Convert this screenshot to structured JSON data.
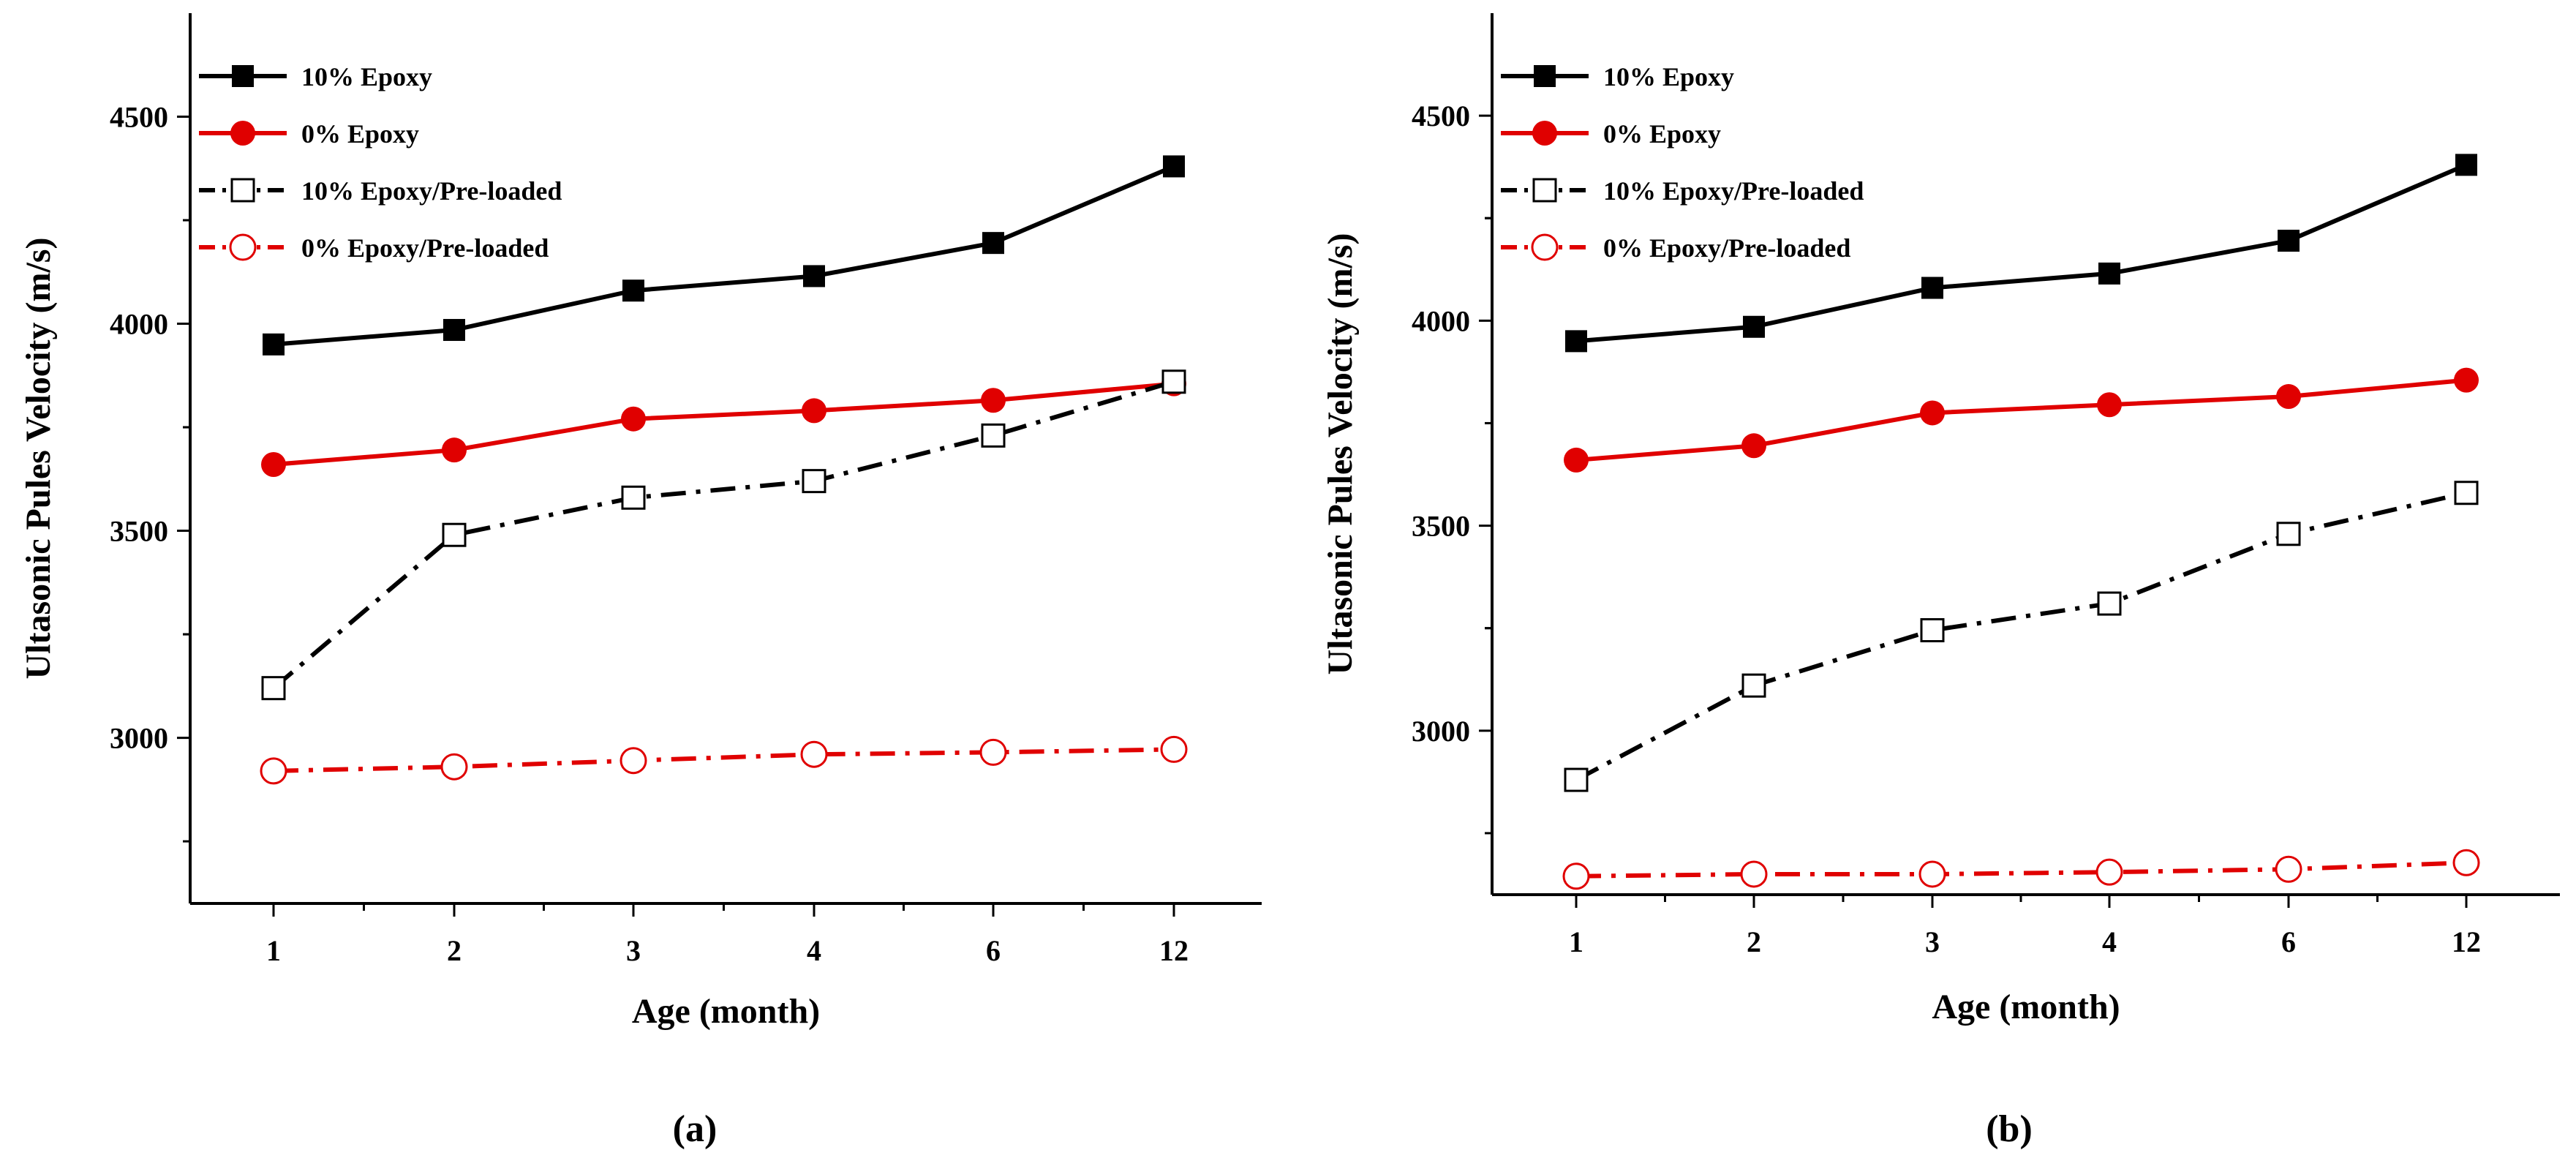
{
  "colors": {
    "black": "#000000",
    "red": "#e00000",
    "marker_fill_open": "#ffffff"
  },
  "chart_data": [
    {
      "type": "line",
      "panel_label": "(a)",
      "xlabel": "Age (month)",
      "ylabel": "Ultasonic Pules Velocity (m/s)",
      "categories": [
        "1",
        "2",
        "3",
        "4",
        "6",
        "12"
      ],
      "ylim": [
        2600,
        4750
      ],
      "yticks": [
        3000,
        3500,
        4000,
        4500
      ],
      "grid": false,
      "legend_position": "top-left",
      "series": [
        {
          "name": "10% Epoxy",
          "values": [
            3950,
            3985,
            4080,
            4115,
            4195,
            4380
          ],
          "color": "#000000",
          "marker": "filled-square",
          "line": "solid"
        },
        {
          "name": "0% Epoxy",
          "values": [
            3660,
            3695,
            3770,
            3790,
            3815,
            3855
          ],
          "color": "#e00000",
          "marker": "filled-circle",
          "line": "solid"
        },
        {
          "name": "10% Epoxy/Pre-loaded",
          "values": [
            3120,
            3490,
            3580,
            3620,
            3730,
            3860
          ],
          "color": "#000000",
          "marker": "open-square",
          "line": "dash-dot"
        },
        {
          "name": "0% Epoxy/Pre-loaded",
          "values": [
            2920,
            2930,
            2945,
            2960,
            2965,
            2972
          ],
          "color": "#e00000",
          "marker": "open-circle",
          "line": "dash-dot"
        }
      ]
    },
    {
      "type": "line",
      "panel_label": "(b)",
      "xlabel": "Age (month)",
      "ylabel": "Ultasonic Pules Velocity (m/s)",
      "categories": [
        "1",
        "2",
        "3",
        "4",
        "6",
        "12"
      ],
      "ylim": [
        2600,
        4750
      ],
      "yticks": [
        3000,
        3500,
        4000,
        4500
      ],
      "grid": false,
      "legend_position": "top-left",
      "series": [
        {
          "name": "10% Epoxy",
          "values": [
            3950,
            3985,
            4080,
            4115,
            4195,
            4380
          ],
          "color": "#000000",
          "marker": "filled-square",
          "line": "solid"
        },
        {
          "name": "0% Epoxy",
          "values": [
            3660,
            3695,
            3775,
            3795,
            3815,
            3855
          ],
          "color": "#e00000",
          "marker": "filled-circle",
          "line": "solid"
        },
        {
          "name": "10% Epoxy/Pre-loaded",
          "values": [
            2880,
            3110,
            3245,
            3310,
            3480,
            3580
          ],
          "color": "#000000",
          "marker": "open-square",
          "line": "dash-dot"
        },
        {
          "name": "0% Epoxy/Pre-loaded",
          "values": [
            2645,
            2650,
            2650,
            2655,
            2662,
            2678
          ],
          "color": "#e00000",
          "marker": "open-circle",
          "line": "dash-dot"
        }
      ]
    }
  ]
}
